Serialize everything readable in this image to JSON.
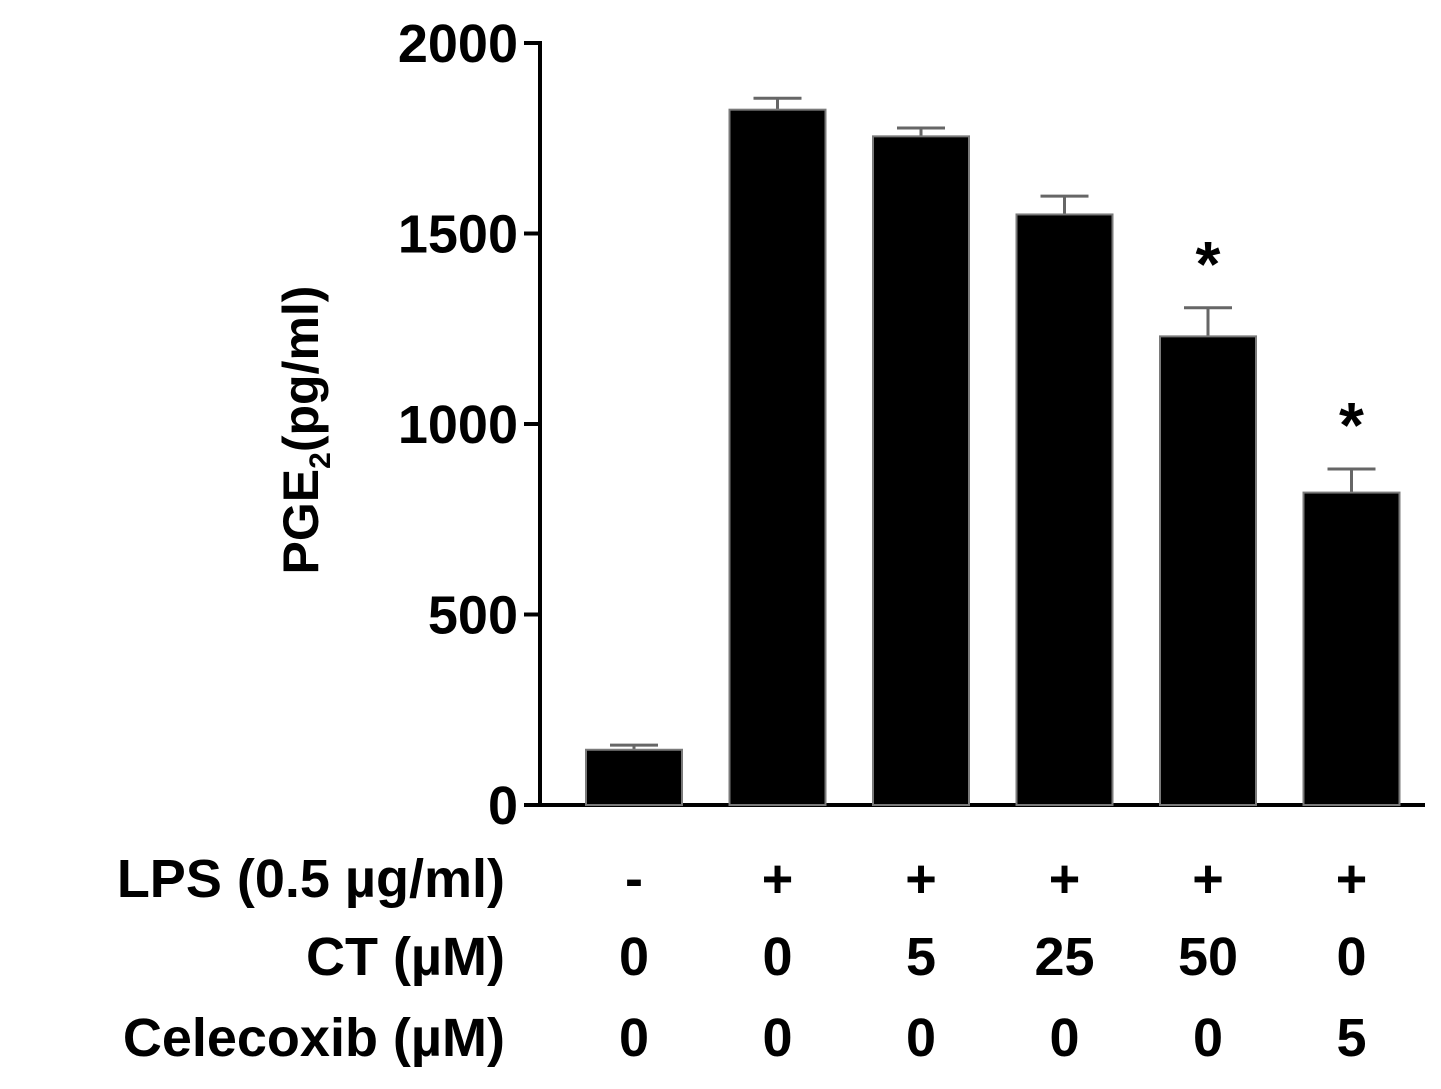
{
  "chart_data": {
    "type": "bar",
    "ylabel": "PGE",
    "ylabel_subscript": "2",
    "ylabel_unit": "(pg/ml)",
    "ylim": [
      0,
      2000
    ],
    "yticks": [
      0,
      500,
      1000,
      1500,
      2000
    ],
    "ytick_labels": [
      "0",
      "500",
      "1000",
      "1500",
      "2000"
    ],
    "grid": false,
    "bar_color": "#000000",
    "values": [
      145,
      1825,
      1755,
      1550,
      1230,
      820
    ],
    "errors": [
      12,
      30,
      22,
      48,
      75,
      62
    ],
    "significance": [
      "",
      "",
      "",
      "",
      "*",
      "*"
    ],
    "conditions": [
      {
        "label": "LPS (0.5 µg/ml)",
        "values": [
          "-",
          "+",
          "+",
          "+",
          "+",
          "+"
        ]
      },
      {
        "label": "CT (µM)",
        "values": [
          "0",
          "0",
          "5",
          "25",
          "50",
          "0"
        ]
      },
      {
        "label": "Celecoxib (µM)",
        "values": [
          "0",
          "0",
          "0",
          "0",
          "0",
          "5"
        ]
      }
    ]
  }
}
